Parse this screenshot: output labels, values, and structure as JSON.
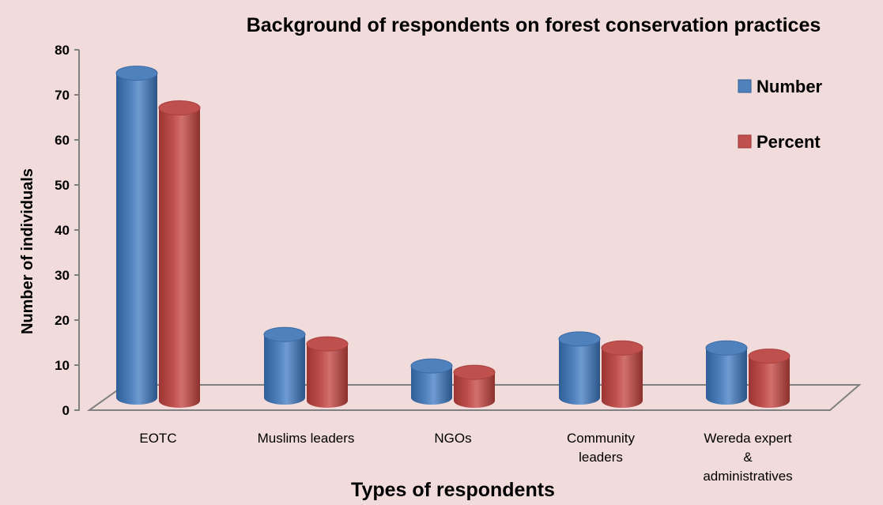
{
  "chart_data": {
    "type": "bar",
    "title": "Background of respondents on forest conservation practices",
    "xlabel": "Types of respondents",
    "ylabel": "Number of individuals",
    "categories": [
      [
        "EOTC"
      ],
      [
        "Muslims leaders"
      ],
      [
        "NGOs"
      ],
      [
        "Community",
        "leaders"
      ],
      [
        "Wereda expert",
        "&",
        "administratives"
      ]
    ],
    "series": [
      {
        "name": "Number",
        "color": "#4f81bd",
        "values": [
          72,
          14,
          7,
          13,
          11
        ]
      },
      {
        "name": "Percent",
        "color": "#c0504d",
        "values": [
          65,
          12.6,
          6.3,
          11.7,
          9.9
        ]
      }
    ],
    "ylim": [
      0,
      80
    ],
    "yticks": [
      0,
      10,
      20,
      30,
      40,
      50,
      60,
      70,
      80
    ],
    "legend_position": "top-right",
    "grid": false,
    "bar_style": "3d-cylinder"
  }
}
